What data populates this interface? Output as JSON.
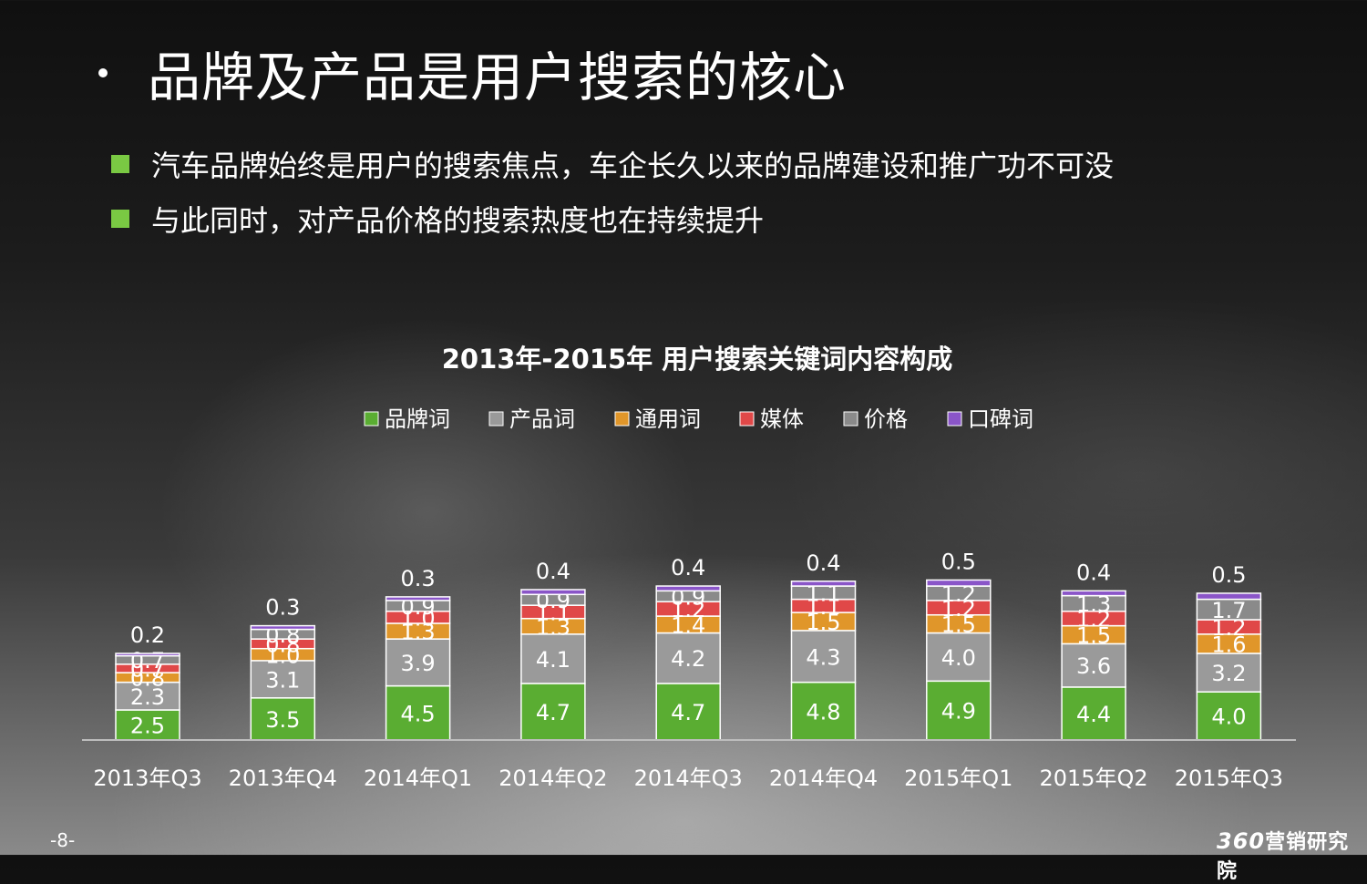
{
  "slide": {
    "title": "品牌及产品是用户搜索的核心",
    "bullets": [
      "汽车品牌始终是用户的搜索焦点，车企长久以来的品牌建设和推广功不可没",
      "与此同时，对产品价格的搜索热度也在持续提升"
    ],
    "page_number": "-8-",
    "brand": {
      "num": "360",
      "text": "营销研究院"
    }
  },
  "colors": {
    "bullet": "#7ac943",
    "series": [
      "#5aad32",
      "#9a9a9a",
      "#e0962a",
      "#e04848",
      "#8a8a8a",
      "#8a55c8"
    ]
  },
  "chart_data": {
    "type": "bar",
    "stacked": true,
    "title": "2013年-2015年 用户搜索关键词内容构成",
    "legend_position": "top",
    "categories": [
      "2013年Q3",
      "2013年Q4",
      "2014年Q1",
      "2014年Q2",
      "2014年Q3",
      "2014年Q4",
      "2015年Q1",
      "2015年Q2",
      "2015年Q3"
    ],
    "series": [
      {
        "name": "品牌词",
        "values": [
          2.5,
          3.5,
          4.5,
          4.7,
          4.7,
          4.8,
          4.9,
          4.4,
          4.0
        ]
      },
      {
        "name": "产品词",
        "values": [
          2.3,
          3.1,
          3.9,
          4.1,
          4.2,
          4.3,
          4.0,
          3.6,
          3.2
        ]
      },
      {
        "name": "通用词",
        "values": [
          0.8,
          1.0,
          1.3,
          1.3,
          1.4,
          1.5,
          1.5,
          1.5,
          1.6
        ]
      },
      {
        "name": "媒体",
        "values": [
          0.7,
          0.8,
          1.0,
          1.1,
          1.2,
          1.1,
          1.2,
          1.2,
          1.2
        ]
      },
      {
        "name": "价格",
        "values": [
          0.7,
          0.8,
          0.9,
          0.9,
          0.9,
          1.1,
          1.2,
          1.3,
          1.7
        ]
      },
      {
        "name": "口碑词",
        "values": [
          0.2,
          0.3,
          0.3,
          0.4,
          0.4,
          0.4,
          0.5,
          0.4,
          0.5
        ]
      }
    ],
    "value_labels": {
      "品牌词": [
        "2.5",
        "3.5",
        "4.5",
        "4.7",
        "4.7",
        "4.8",
        "4.9",
        "4.4",
        "4.0"
      ],
      "产品词": [
        "2.3",
        "3.1",
        "3.9",
        "4.1",
        "4.2",
        "4.3",
        "4.0",
        "3.6",
        "3.2"
      ],
      "通用词": [
        "0.8",
        "1.0",
        "1.3",
        "1.3",
        "1.4",
        "1.5",
        "1.5",
        "1.5",
        "1.6"
      ],
      "媒体": [
        "0.7",
        "0.8",
        "1.0",
        "1.1",
        "1.2",
        "1.1",
        "1.2",
        "1.2",
        "1.2"
      ],
      "价格": [
        "0.7",
        "0.8",
        "0.9",
        "0.9",
        "0.9",
        "1.1",
        "1.2",
        "1.3",
        "1.7"
      ],
      "口碑词": [
        "0.2",
        "0.3",
        "0.3",
        "0.4",
        "0.4",
        "0.4",
        "0.5",
        "0.4",
        "0.5"
      ]
    },
    "xlabel": "",
    "ylabel": "",
    "ylim": [
      0,
      13
    ],
    "grid": false
  }
}
